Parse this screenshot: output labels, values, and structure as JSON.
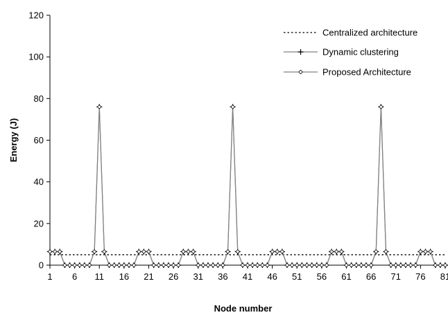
{
  "chart_data": {
    "type": "line",
    "title": "",
    "xlabel": "Node number",
    "ylabel": "Energy (J)",
    "xlim": [
      1,
      81
    ],
    "ylim": [
      0,
      120
    ],
    "x_ticks": [
      1,
      6,
      11,
      16,
      21,
      26,
      31,
      36,
      41,
      46,
      51,
      56,
      61,
      66,
      71,
      76,
      81
    ],
    "y_ticks": [
      0,
      20,
      40,
      60,
      80,
      100,
      120
    ],
    "grid": false,
    "legend_position": "top-right",
    "x": [
      1,
      2,
      3,
      4,
      5,
      6,
      7,
      8,
      9,
      10,
      11,
      12,
      13,
      14,
      15,
      16,
      17,
      18,
      19,
      20,
      21,
      22,
      23,
      24,
      25,
      26,
      27,
      28,
      29,
      30,
      31,
      32,
      33,
      34,
      35,
      36,
      37,
      38,
      39,
      40,
      41,
      42,
      43,
      44,
      45,
      46,
      47,
      48,
      49,
      50,
      51,
      52,
      53,
      54,
      55,
      56,
      57,
      58,
      59,
      60,
      61,
      62,
      63,
      64,
      65,
      66,
      67,
      68,
      69,
      70,
      71,
      72,
      73,
      74,
      75,
      76,
      77,
      78,
      79,
      80,
      81
    ],
    "series": [
      {
        "name": "Centralized architecture",
        "style": "dotted",
        "marker": "none",
        "color": "#000000",
        "values": [
          5,
          5,
          5,
          5,
          5,
          5,
          5,
          5,
          5,
          5,
          5,
          5,
          5,
          5,
          5,
          5,
          5,
          5,
          5,
          5,
          5,
          5,
          5,
          5,
          5,
          5,
          5,
          5,
          5,
          5,
          5,
          5,
          5,
          5,
          5,
          5,
          5,
          5,
          5,
          5,
          5,
          5,
          5,
          5,
          5,
          5,
          5,
          5,
          5,
          5,
          5,
          5,
          5,
          5,
          5,
          5,
          5,
          5,
          5,
          5,
          5,
          5,
          5,
          5,
          5,
          5,
          5,
          5,
          5,
          5,
          5,
          5,
          5,
          5,
          5,
          5,
          5,
          5,
          5,
          5,
          5
        ]
      },
      {
        "name": "Dynamic clustering",
        "style": "solid",
        "marker": "plus",
        "color": "#808080",
        "values": [
          6.5,
          6.5,
          6.5,
          0,
          0,
          0,
          0,
          0,
          0,
          6.5,
          76,
          6.5,
          0,
          0,
          0,
          0,
          0,
          0,
          6.5,
          6.5,
          6.5,
          0,
          0,
          0,
          0,
          0,
          0,
          6.5,
          6.5,
          6.5,
          0,
          0,
          0,
          0,
          0,
          0,
          6.5,
          76,
          6.5,
          0,
          0,
          0,
          0,
          0,
          0,
          6.5,
          6.5,
          6.5,
          0,
          0,
          0,
          0,
          0,
          0,
          0,
          0,
          0,
          6.5,
          6.5,
          6.5,
          0,
          0,
          0,
          0,
          0,
          0,
          6.5,
          76,
          6.5,
          0,
          0,
          0,
          0,
          0,
          0,
          6.5,
          6.5,
          6.5,
          0,
          0,
          0
        ]
      },
      {
        "name": "Proposed Architecture",
        "style": "solid",
        "marker": "diamond",
        "color": "#808080",
        "values": [
          6.5,
          6.5,
          6.5,
          0,
          0,
          0,
          0,
          0,
          0,
          6.5,
          76,
          6.5,
          0,
          0,
          0,
          0,
          0,
          0,
          6.5,
          6.5,
          6.5,
          0,
          0,
          0,
          0,
          0,
          0,
          6.5,
          6.5,
          6.5,
          0,
          0,
          0,
          0,
          0,
          0,
          6.5,
          76,
          6.5,
          0,
          0,
          0,
          0,
          0,
          0,
          6.5,
          6.5,
          6.5,
          0,
          0,
          0,
          0,
          0,
          0,
          0,
          0,
          0,
          6.5,
          6.5,
          6.5,
          0,
          0,
          0,
          0,
          0,
          0,
          6.5,
          76,
          6.5,
          0,
          0,
          0,
          0,
          0,
          0,
          6.5,
          6.5,
          6.5,
          0,
          0,
          0
        ]
      }
    ]
  }
}
